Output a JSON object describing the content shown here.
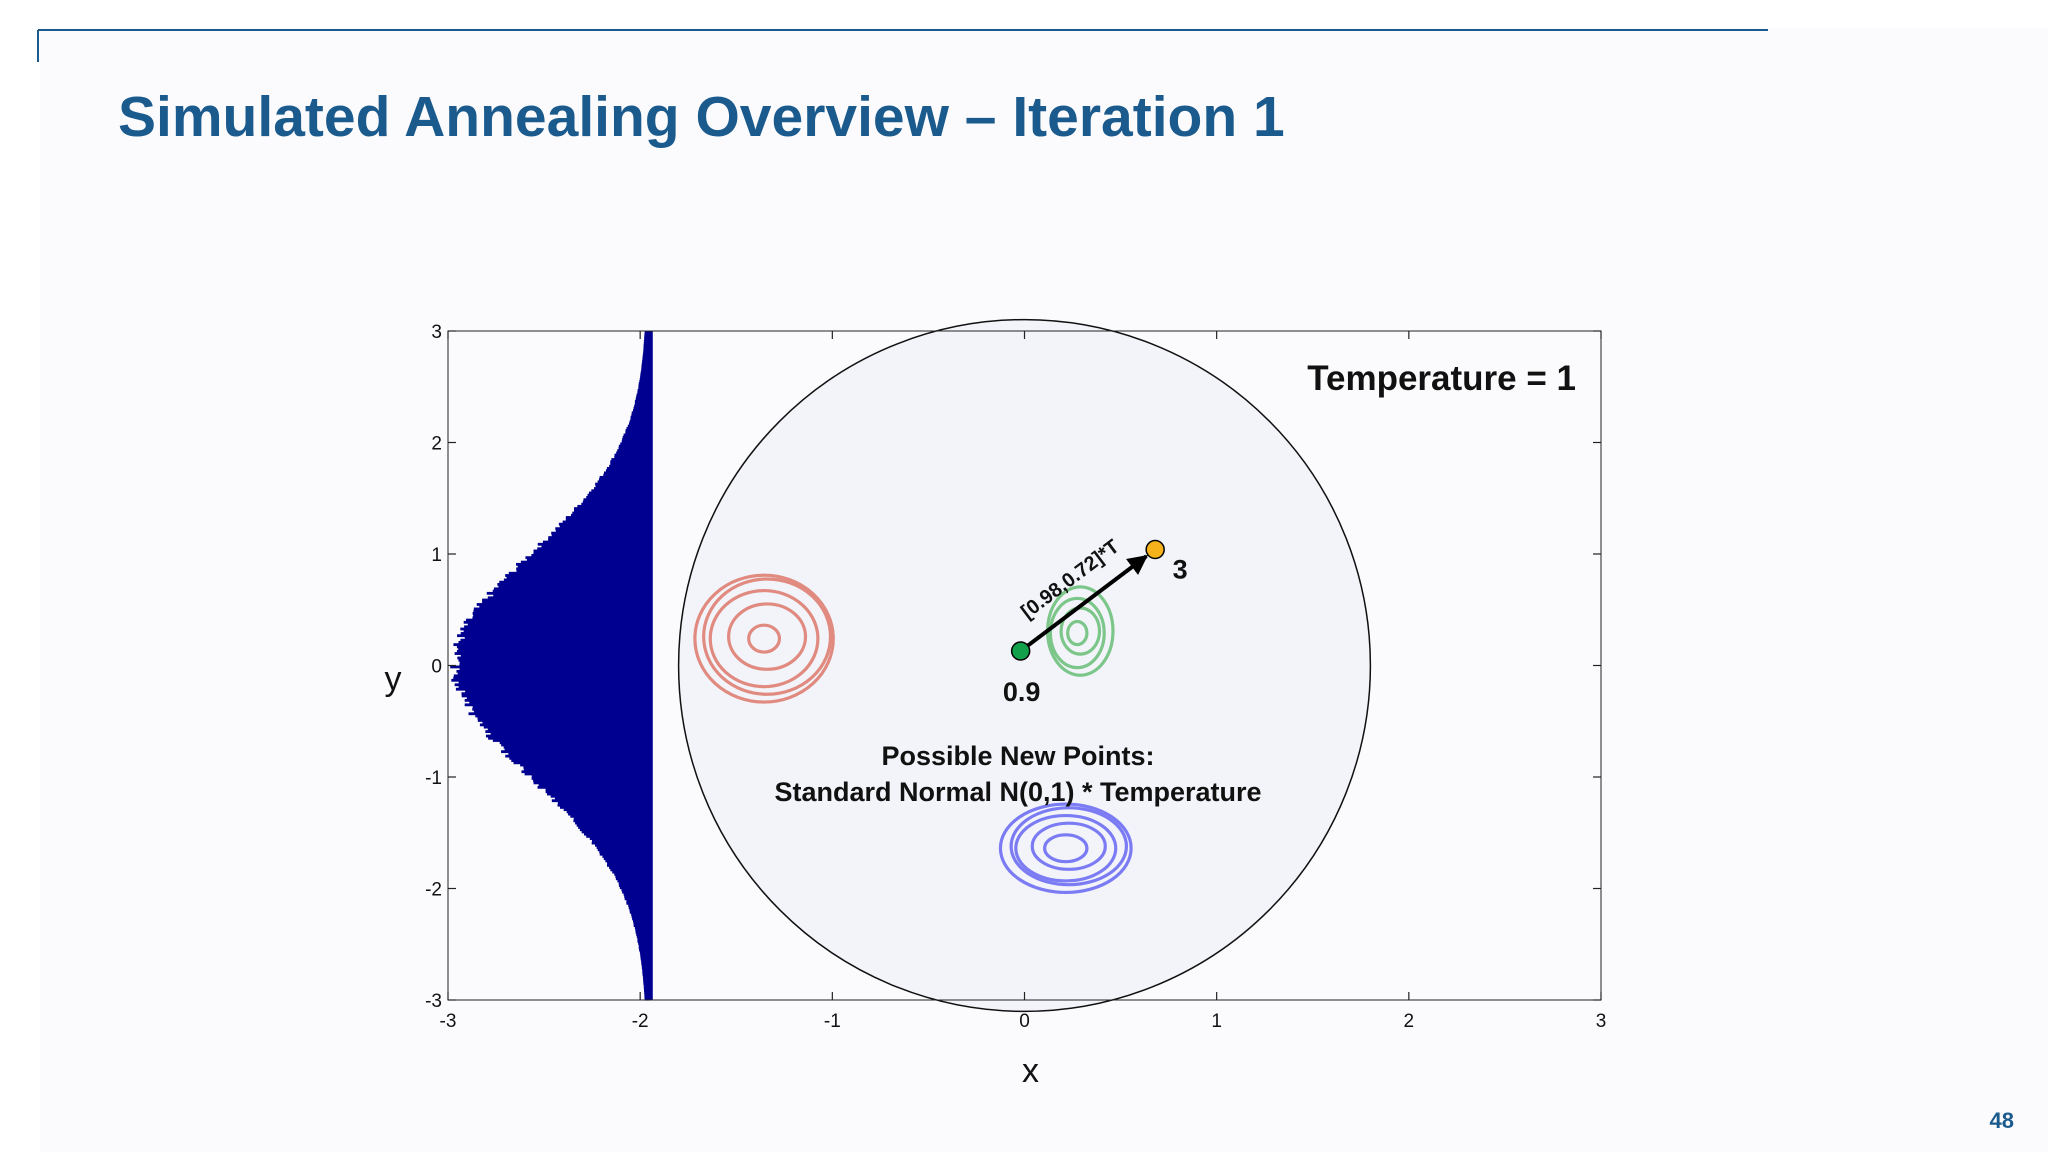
{
  "slide": {
    "title": "Simulated Annealing Overview – Iteration 1",
    "page_number": "48",
    "title_color": "#1b5a8c"
  },
  "chart_data": {
    "type": "scatter",
    "xlabel": "x",
    "ylabel": "y",
    "xlim": [
      -3,
      3
    ],
    "ylim": [
      -3,
      3
    ],
    "xticks": [
      -3,
      -2,
      -1,
      0,
      1,
      2,
      3
    ],
    "yticks": [
      -3,
      -2,
      -1,
      0,
      1,
      2,
      3
    ],
    "grid": false,
    "annotations": {
      "temperature": "Temperature = 1",
      "step_vector": "[0.98,0.72]*T",
      "current_value": "0.9",
      "new_value": "3",
      "caption_line1": "Possible New Points:",
      "caption_line2": "Standard Normal N(0,1) * Temperature"
    },
    "current_point": {
      "x": -0.02,
      "y": 0.13,
      "color": "#12a04a"
    },
    "new_point": {
      "x": 0.68,
      "y": 1.04,
      "color": "#f5b21a"
    },
    "search_region": {
      "center": [
        0.0,
        0.0
      ],
      "radius": 1.8,
      "fill": "#f2f4fa",
      "stroke": "#111111"
    },
    "histogram": {
      "orientation": "horizontal",
      "baseline_x": -1.95,
      "x_at_peak": -2.95,
      "distribution": "standard normal",
      "color": "#000090"
    },
    "contours": [
      {
        "name": "red",
        "center": [
          -1.35,
          0.25
        ],
        "color": "#e08a80",
        "rx": [
          0.08,
          0.2,
          0.28,
          0.33,
          0.36
        ],
        "ry": [
          0.07,
          0.17,
          0.25,
          0.3,
          0.33
        ]
      },
      {
        "name": "green",
        "center": [
          0.28,
          0.3
        ],
        "color": "#7cc68a",
        "rx": [
          0.05,
          0.1,
          0.14,
          0.17
        ],
        "ry": [
          0.06,
          0.12,
          0.18,
          0.23
        ]
      },
      {
        "name": "blue",
        "center": [
          0.22,
          -1.63
        ],
        "color": "#7b7cf4",
        "rx": [
          0.11,
          0.19,
          0.26,
          0.3,
          0.34
        ],
        "ry": [
          0.07,
          0.12,
          0.17,
          0.2,
          0.23
        ]
      }
    ]
  }
}
